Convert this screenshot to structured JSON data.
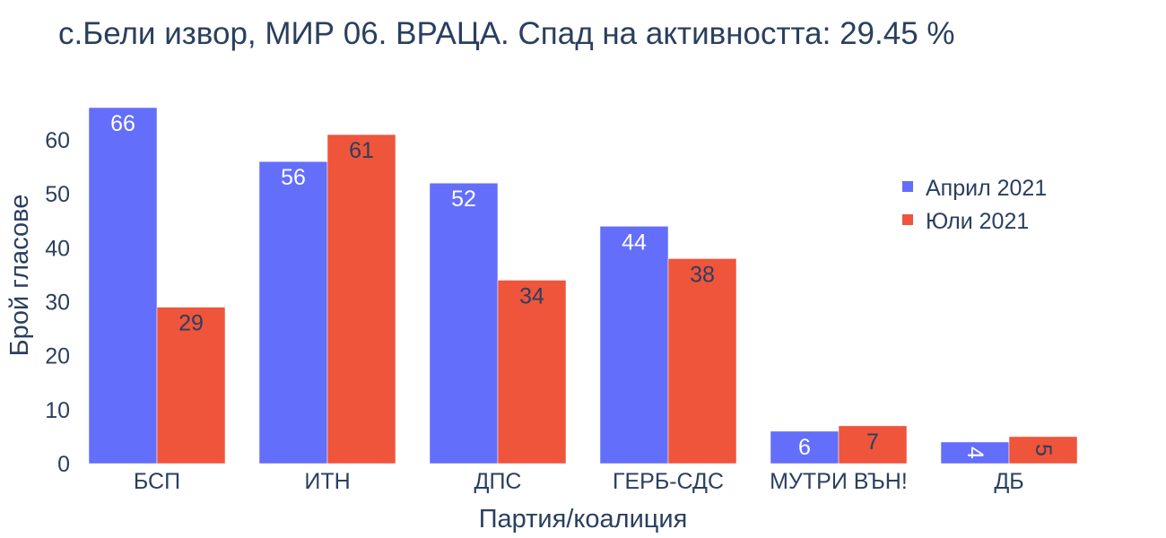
{
  "chart_data": {
    "type": "bar",
    "title": "с.Бели извор, МИР 06. ВРАЦА. Спад на активността: 29.45 %",
    "xlabel": "Партия/коалиция",
    "ylabel": "Брой гласове",
    "categories": [
      "БСП",
      "ИТН",
      "ДПС",
      "ГЕРБ-СДС",
      "МУТРИ ВЪН!",
      "ДБ"
    ],
    "series": [
      {
        "name": "Април 2021",
        "color": "#636efa",
        "values": [
          66,
          56,
          52,
          44,
          6,
          4
        ]
      },
      {
        "name": "Юли 2021",
        "color": "#ef553b",
        "values": [
          29,
          61,
          34,
          38,
          7,
          5
        ]
      }
    ],
    "ylim": [
      0,
      66
    ],
    "yticks": [
      0,
      10,
      20,
      30,
      40,
      50,
      60
    ],
    "grid": false,
    "legend_position": "right"
  }
}
